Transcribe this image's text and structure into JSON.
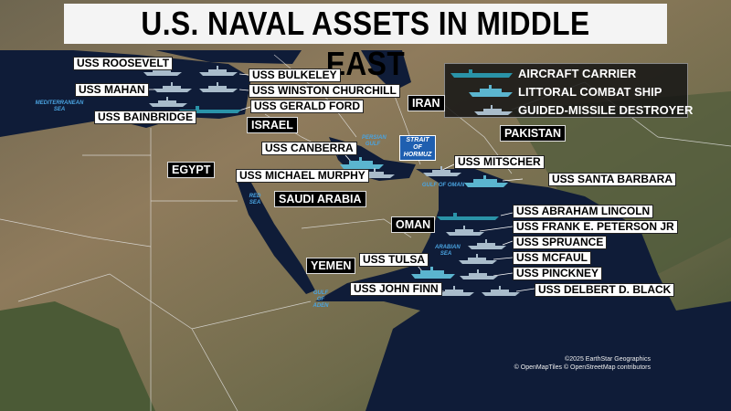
{
  "title": "U.S. NAVAL ASSETS IN MIDDLE EAST",
  "colors": {
    "aircraft_carrier": "#2a93a8",
    "littoral_combat_ship": "#5bb5cf",
    "guided_missile_destroyer": "#a9bccb",
    "water": "#0f1c38",
    "land": "#7f7058"
  },
  "legend": [
    {
      "type": "aircraft_carrier",
      "label": "AIRCRAFT CARRIER"
    },
    {
      "type": "littoral_combat_ship",
      "label": "LITTORAL COMBAT SHIP"
    },
    {
      "type": "guided_missile_destroyer",
      "label": "GUIDED-MISSILE DESTROYER"
    }
  ],
  "countries": [
    "IRAN",
    "ISRAEL",
    "EGYPT",
    "PAKISTAN",
    "SAUDI ARABIA",
    "OMAN",
    "YEMEN"
  ],
  "strait": "STRAIT OF HORMUZ",
  "water_bodies": [
    "MEDITERRANEAN SEA",
    "PERSIAN GULF",
    "RED SEA",
    "GULF OF OMAN",
    "ARABIAN SEA",
    "GULF OF ADEN"
  ],
  "ships": [
    {
      "name": "USS ROOSEVELT",
      "type": "guided_missile_destroyer"
    },
    {
      "name": "USS BULKELEY",
      "type": "guided_missile_destroyer"
    },
    {
      "name": "USS MAHAN",
      "type": "guided_missile_destroyer"
    },
    {
      "name": "USS WINSTON CHURCHILL",
      "type": "guided_missile_destroyer"
    },
    {
      "name": "USS GERALD FORD",
      "type": "aircraft_carrier"
    },
    {
      "name": "USS BAINBRIDGE",
      "type": "guided_missile_destroyer"
    },
    {
      "name": "USS CANBERRA",
      "type": "littoral_combat_ship"
    },
    {
      "name": "USS MICHAEL MURPHY",
      "type": "guided_missile_destroyer"
    },
    {
      "name": "USS MITSCHER",
      "type": "guided_missile_destroyer"
    },
    {
      "name": "USS SANTA BARBARA",
      "type": "littoral_combat_ship"
    },
    {
      "name": "USS ABRAHAM LINCOLN",
      "type": "aircraft_carrier"
    },
    {
      "name": "USS FRANK E. PETERSON JR",
      "type": "guided_missile_destroyer"
    },
    {
      "name": "USS SPRUANCE",
      "type": "guided_missile_destroyer"
    },
    {
      "name": "USS MCFAUL",
      "type": "guided_missile_destroyer"
    },
    {
      "name": "USS TULSA",
      "type": "littoral_combat_ship"
    },
    {
      "name": "USS PINCKNEY",
      "type": "guided_missile_destroyer"
    },
    {
      "name": "USS JOHN FINN",
      "type": "guided_missile_destroyer"
    },
    {
      "name": "USS DELBERT D. BLACK",
      "type": "guided_missile_destroyer"
    }
  ],
  "attribution": [
    "©2025 EarthStar Geographics",
    "© OpenMapTiles © OpenStreetMap contributors"
  ]
}
